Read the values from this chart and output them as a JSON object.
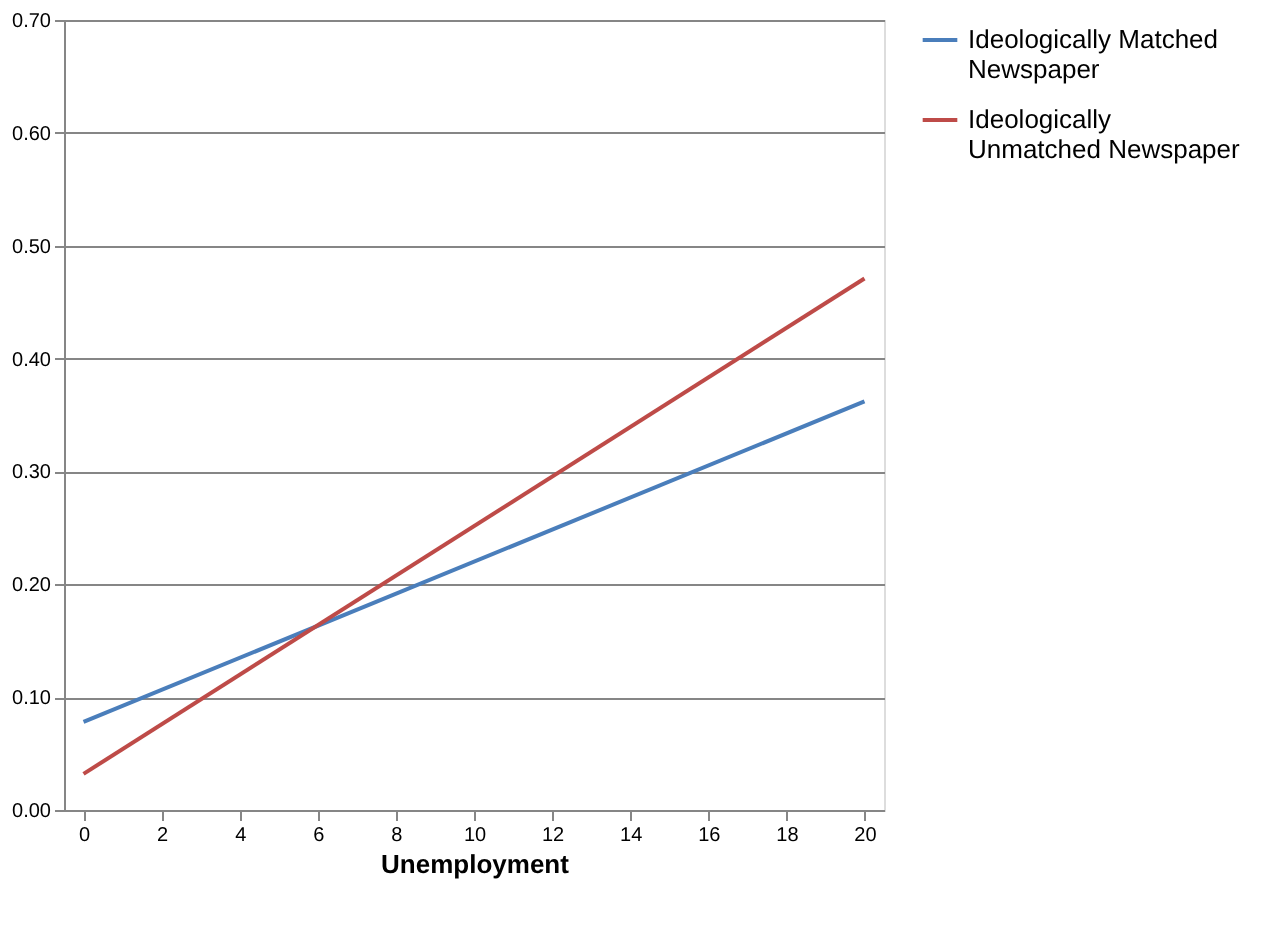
{
  "chart_data": {
    "type": "line",
    "xlabel": "Unemployment",
    "x": [
      0,
      20
    ],
    "series": [
      {
        "name": "Ideologically Matched Newspaper",
        "color": "#4a7ebb",
        "values": [
          0.078,
          0.362
        ]
      },
      {
        "name": "Ideologically Unmatched Newspaper",
        "color": "#be4b48",
        "values": [
          0.032,
          0.471
        ]
      }
    ],
    "xlim": [
      -0.5,
      20.5
    ],
    "xticks": [
      0,
      2,
      4,
      6,
      8,
      10,
      12,
      14,
      16,
      18,
      20
    ],
    "ylim": [
      0,
      0.7
    ],
    "yticks": [
      {
        "value": 0,
        "label": "0.00"
      },
      {
        "value": 0.1,
        "label": "0.10"
      },
      {
        "value": 0.2,
        "label": "0.20"
      },
      {
        "value": 0.3,
        "label": "0.30"
      },
      {
        "value": 0.4,
        "label": "0.40"
      },
      {
        "value": 0.5,
        "label": "0.50"
      },
      {
        "value": 0.6,
        "label": "0.60"
      },
      {
        "value": 0.7,
        "label": "0.70"
      }
    ],
    "grid": "y",
    "legend": "right",
    "marker": "none",
    "line_style": "solid"
  }
}
